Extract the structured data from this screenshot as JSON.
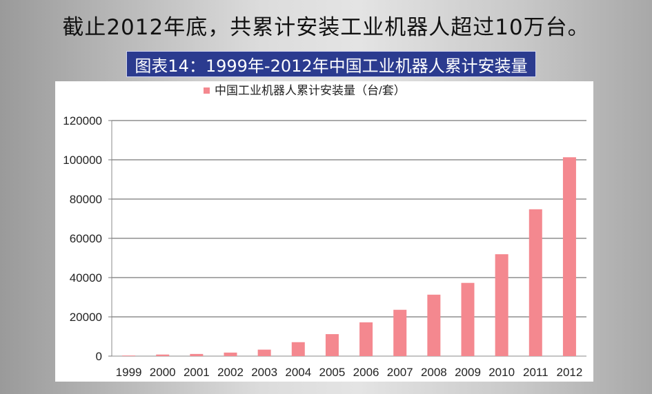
{
  "headline": "截止2012年底，共累计安装工业机器人超过10万台。",
  "caption": "图表14：1999年-2012年中国工业机器人累计安装量",
  "colors": {
    "bar": "#f4888f",
    "caption_bg": "#2b3b8f",
    "grid": "#555555"
  },
  "chart_data": {
    "type": "bar",
    "title": "",
    "legend": "中国工业机器人累计安装量（台/套）",
    "legend_position": "top-left",
    "categories": [
      "1999",
      "2000",
      "2001",
      "2002",
      "2003",
      "2004",
      "2005",
      "2006",
      "2007",
      "2008",
      "2009",
      "2010",
      "2011",
      "2012"
    ],
    "values": [
      300,
      800,
      1100,
      1800,
      3300,
      7100,
      11200,
      17200,
      23600,
      31300,
      37300,
      51900,
      74800,
      101300
    ],
    "ylim": [
      0,
      120000
    ],
    "yticks": [
      0,
      20000,
      40000,
      60000,
      80000,
      100000,
      120000
    ],
    "ytick_labels": [
      "0",
      "20000",
      "40000",
      "60000",
      "80000",
      "100000",
      "120000"
    ],
    "xlabel": "",
    "ylabel": "",
    "grid": true
  }
}
